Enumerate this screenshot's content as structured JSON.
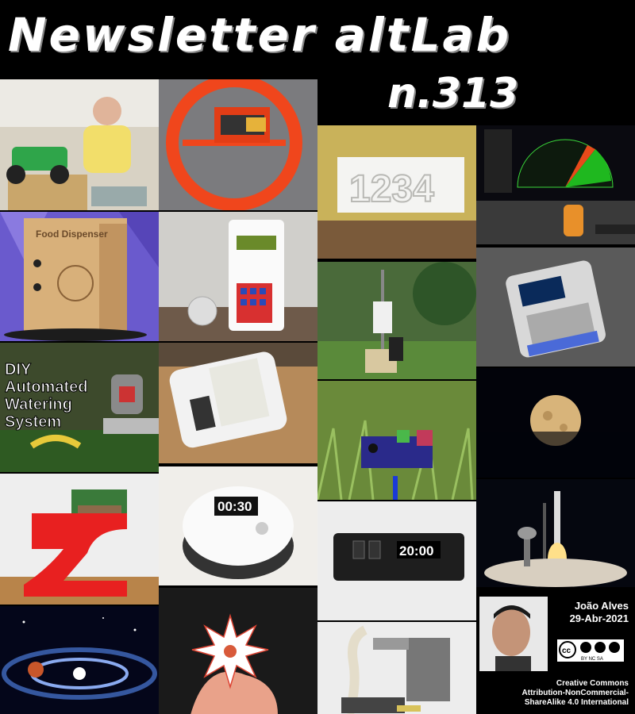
{
  "header": {
    "title": "Newsletter altLab",
    "issue": "n.313"
  },
  "tiles": {
    "food_dispenser_label": "Food Dispenser",
    "watering_line1": "DIY",
    "watering_line2": "Automated",
    "watering_line3": "Watering",
    "watering_line4": "System",
    "clock_display": "1234",
    "timer_display": "00:30",
    "box_display": "20:00"
  },
  "author": {
    "name": "João Alves",
    "date": "29-Abr-2021"
  },
  "license": {
    "badge": "BY NC SA",
    "line1": "Creative Commons",
    "line2": "Attribution-NonCommercial-",
    "line3": "ShareAlike 4.0 International"
  },
  "colors": {
    "background": "#000000",
    "title": "#ffffff"
  }
}
